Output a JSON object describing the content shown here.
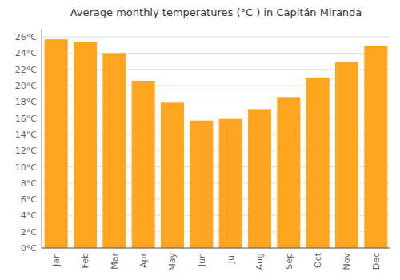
{
  "chart_data": {
    "type": "bar",
    "title": "Average monthly temperatures (°C ) in Capitán Miranda",
    "categories": [
      "Jan",
      "Feb",
      "Mar",
      "Apr",
      "May",
      "Jun",
      "Jul",
      "Aug",
      "Sep",
      "Oct",
      "Nov",
      "Dec"
    ],
    "values": [
      25.7,
      25.4,
      24.0,
      20.6,
      17.9,
      15.7,
      15.9,
      17.1,
      18.6,
      21.0,
      22.9,
      24.9
    ],
    "color": "#FFA520",
    "ylim": [
      0,
      27
    ],
    "yticks": [
      {
        "value": 0,
        "label": "0°C"
      },
      {
        "value": 2,
        "label": "2°C"
      },
      {
        "value": 4,
        "label": "4°C"
      },
      {
        "value": 6,
        "label": "6°C"
      },
      {
        "value": 8,
        "label": "8°C"
      },
      {
        "value": 10,
        "label": "10°C"
      },
      {
        "value": 12,
        "label": "12°C"
      },
      {
        "value": 14,
        "label": "14°C"
      },
      {
        "value": 16,
        "label": "16°C"
      },
      {
        "value": 18,
        "label": "18°C"
      },
      {
        "value": 20,
        "label": "20°C"
      },
      {
        "value": 22,
        "label": "22°C"
      },
      {
        "value": 24,
        "label": "24°C"
      },
      {
        "value": 26,
        "label": "26°C"
      }
    ],
    "grid": true
  }
}
